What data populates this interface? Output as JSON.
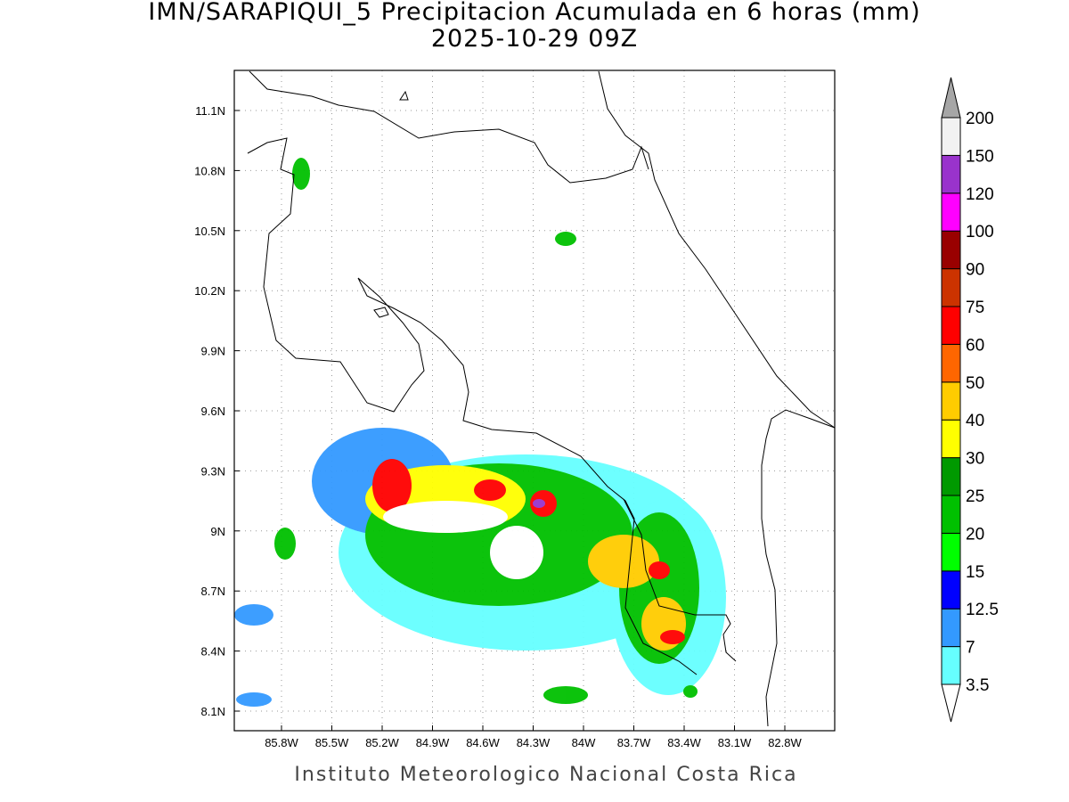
{
  "title": "IMN/SARAPIQUI_5 Precipitacion Acumulada en 6 horas (mm)",
  "subtitle": "2025-10-29 09Z",
  "map": {
    "lon_labels": [
      "85.8W",
      "85.5W",
      "85.2W",
      "84.9W",
      "84.6W",
      "84.3W",
      "84W",
      "83.7W",
      "83.4W",
      "83.1W",
      "82.8W"
    ],
    "lat_labels": [
      "11.1N",
      "10.8N",
      "10.5N",
      "10.2N",
      "9.9N",
      "9.6N",
      "9.3N",
      "9N",
      "8.7N",
      "8.4N",
      "8.1N"
    ]
  },
  "colorbar": {
    "levels": [
      {
        "label": "3.5",
        "color": "#66ffff"
      },
      {
        "label": "7",
        "color": "#3399ff"
      },
      {
        "label": "12.5",
        "color": "#0000ff"
      },
      {
        "label": "15",
        "color": "#00ff00"
      },
      {
        "label": "20",
        "color": "#00c000"
      },
      {
        "label": "25",
        "color": "#009900"
      },
      {
        "label": "30",
        "color": "#ffff00"
      },
      {
        "label": "40",
        "color": "#ffcc00"
      },
      {
        "label": "50",
        "color": "#ff6600"
      },
      {
        "label": "60",
        "color": "#ff0000"
      },
      {
        "label": "75",
        "color": "#cc3300"
      },
      {
        "label": "90",
        "color": "#990000"
      },
      {
        "label": "100",
        "color": "#ff00ff"
      },
      {
        "label": "120",
        "color": "#9933cc"
      },
      {
        "label": "150",
        "color": "#f2f2f2"
      },
      {
        "label": "200",
        "color": "#a6a6a6"
      }
    ]
  },
  "footer": "Instituto Meteorologico Nacional Costa Rica"
}
